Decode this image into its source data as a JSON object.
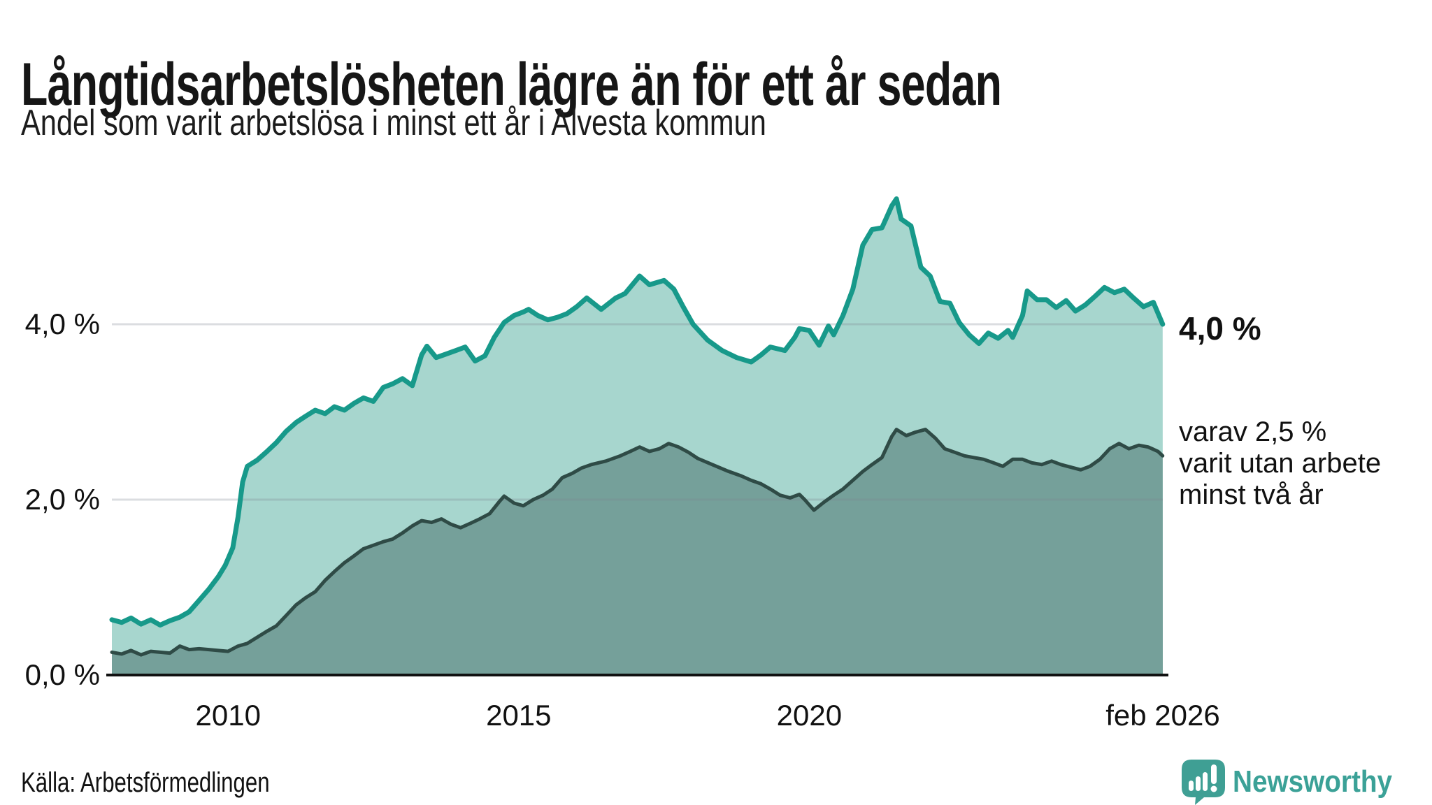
{
  "header": {
    "title": "Långtidsarbetslösheten lägre än för ett år sedan",
    "subtitle": "Andel som varit arbetslösa i minst ett år i Alvesta kommun"
  },
  "annotations": {
    "primary_end_label": "4,0 %",
    "secondary_end_label_lines": [
      "varav 2,5 %",
      "varit utan arbete",
      "minst två år"
    ]
  },
  "footer": {
    "source": "Källa: Arbetsförmedlingen",
    "brand_name": "Newsworthy",
    "brand_icon": "speech-bubble-bar-chart-icon"
  },
  "colors": {
    "line_primary": "#17998a",
    "fill_primary": "#a7d6ce",
    "line_secondary": "#2f4b46",
    "fill_secondary": "#75a09a",
    "axis": "#111111",
    "gridline": "rgba(127,132,142,0.28)",
    "brand_teal": "#3ba197",
    "text": "#111111"
  },
  "chart_data": {
    "type": "area",
    "title": "Långtidsarbetslösheten lägre än för ett år sedan",
    "subtitle": "Andel som varit arbetslösa i minst ett år i Alvesta kommun",
    "unit": "%",
    "grid": "horizontal",
    "legend_position": "right-edge-annotations",
    "x_axis": {
      "range": [
        2008.0,
        2026.083
      ],
      "ticks": [
        {
          "x": 2010,
          "label": "2010"
        },
        {
          "x": 2015,
          "label": "2015"
        },
        {
          "x": 2020,
          "label": "2020"
        },
        {
          "x": 2026.083,
          "label": "feb 2026"
        }
      ]
    },
    "y_axis": {
      "range": [
        0,
        5.6
      ],
      "ticks": [
        {
          "v": 0,
          "label": "0,0 %"
        },
        {
          "v": 2,
          "label": "2,0 %"
        },
        {
          "v": 4,
          "label": "4,0 %"
        }
      ]
    },
    "series": [
      {
        "name": "Andel som varit arbetslösa i minst ett år",
        "end_value": 4.0,
        "end_label": "4,0 %",
        "points": [
          [
            2008.0,
            0.63
          ],
          [
            2008.17,
            0.6
          ],
          [
            2008.33,
            0.65
          ],
          [
            2008.5,
            0.58
          ],
          [
            2008.67,
            0.63
          ],
          [
            2008.83,
            0.57
          ],
          [
            2009.0,
            0.62
          ],
          [
            2009.17,
            0.66
          ],
          [
            2009.33,
            0.72
          ],
          [
            2009.5,
            0.85
          ],
          [
            2009.67,
            0.98
          ],
          [
            2009.83,
            1.12
          ],
          [
            2009.95,
            1.25
          ],
          [
            2010.08,
            1.45
          ],
          [
            2010.17,
            1.8
          ],
          [
            2010.25,
            2.2
          ],
          [
            2010.33,
            2.38
          ],
          [
            2010.5,
            2.45
          ],
          [
            2010.67,
            2.55
          ],
          [
            2010.83,
            2.65
          ],
          [
            2011.0,
            2.78
          ],
          [
            2011.17,
            2.88
          ],
          [
            2011.33,
            2.95
          ],
          [
            2011.5,
            3.02
          ],
          [
            2011.67,
            2.98
          ],
          [
            2011.83,
            3.06
          ],
          [
            2012.0,
            3.02
          ],
          [
            2012.17,
            3.1
          ],
          [
            2012.33,
            3.16
          ],
          [
            2012.5,
            3.12
          ],
          [
            2012.67,
            3.28
          ],
          [
            2012.83,
            3.32
          ],
          [
            2013.0,
            3.38
          ],
          [
            2013.17,
            3.3
          ],
          [
            2013.33,
            3.65
          ],
          [
            2013.42,
            3.75
          ],
          [
            2013.58,
            3.62
          ],
          [
            2013.75,
            3.66
          ],
          [
            2013.92,
            3.7
          ],
          [
            2014.08,
            3.74
          ],
          [
            2014.25,
            3.58
          ],
          [
            2014.42,
            3.64
          ],
          [
            2014.58,
            3.85
          ],
          [
            2014.75,
            4.02
          ],
          [
            2014.92,
            4.1
          ],
          [
            2015.08,
            4.14
          ],
          [
            2015.17,
            4.17
          ],
          [
            2015.33,
            4.1
          ],
          [
            2015.5,
            4.05
          ],
          [
            2015.67,
            4.08
          ],
          [
            2015.83,
            4.12
          ],
          [
            2016.0,
            4.2
          ],
          [
            2016.17,
            4.3
          ],
          [
            2016.42,
            4.17
          ],
          [
            2016.67,
            4.3
          ],
          [
            2016.83,
            4.35
          ],
          [
            2017.08,
            4.55
          ],
          [
            2017.25,
            4.45
          ],
          [
            2017.5,
            4.5
          ],
          [
            2017.67,
            4.4
          ],
          [
            2017.83,
            4.2
          ],
          [
            2018.0,
            4.0
          ],
          [
            2018.25,
            3.82
          ],
          [
            2018.5,
            3.7
          ],
          [
            2018.75,
            3.62
          ],
          [
            2019.0,
            3.57
          ],
          [
            2019.17,
            3.65
          ],
          [
            2019.33,
            3.74
          ],
          [
            2019.58,
            3.7
          ],
          [
            2019.75,
            3.85
          ],
          [
            2019.83,
            3.95
          ],
          [
            2020.0,
            3.93
          ],
          [
            2020.17,
            3.76
          ],
          [
            2020.33,
            3.98
          ],
          [
            2020.42,
            3.88
          ],
          [
            2020.58,
            4.1
          ],
          [
            2020.75,
            4.4
          ],
          [
            2020.92,
            4.9
          ],
          [
            2021.08,
            5.08
          ],
          [
            2021.25,
            5.1
          ],
          [
            2021.42,
            5.35
          ],
          [
            2021.5,
            5.43
          ],
          [
            2021.58,
            5.2
          ],
          [
            2021.75,
            5.12
          ],
          [
            2021.92,
            4.65
          ],
          [
            2022.08,
            4.55
          ],
          [
            2022.25,
            4.26
          ],
          [
            2022.42,
            4.24
          ],
          [
            2022.58,
            4.02
          ],
          [
            2022.75,
            3.88
          ],
          [
            2022.92,
            3.78
          ],
          [
            2023.08,
            3.9
          ],
          [
            2023.25,
            3.84
          ],
          [
            2023.42,
            3.93
          ],
          [
            2023.5,
            3.85
          ],
          [
            2023.67,
            4.1
          ],
          [
            2023.75,
            4.38
          ],
          [
            2023.92,
            4.28
          ],
          [
            2024.08,
            4.28
          ],
          [
            2024.25,
            4.19
          ],
          [
            2024.42,
            4.27
          ],
          [
            2024.58,
            4.15
          ],
          [
            2024.75,
            4.22
          ],
          [
            2024.92,
            4.32
          ],
          [
            2025.08,
            4.42
          ],
          [
            2025.25,
            4.36
          ],
          [
            2025.42,
            4.4
          ],
          [
            2025.58,
            4.3
          ],
          [
            2025.75,
            4.2
          ],
          [
            2025.92,
            4.25
          ],
          [
            2026.08,
            4.0
          ]
        ]
      },
      {
        "name": "varav utan arbete minst två år",
        "end_value": 2.5,
        "end_label": "varav 2,5 % varit utan arbete minst två år",
        "points": [
          [
            2008.0,
            0.26
          ],
          [
            2008.17,
            0.24
          ],
          [
            2008.33,
            0.28
          ],
          [
            2008.5,
            0.23
          ],
          [
            2008.67,
            0.27
          ],
          [
            2008.83,
            0.26
          ],
          [
            2009.0,
            0.25
          ],
          [
            2009.17,
            0.33
          ],
          [
            2009.33,
            0.29
          ],
          [
            2009.5,
            0.3
          ],
          [
            2009.67,
            0.29
          ],
          [
            2009.83,
            0.28
          ],
          [
            2010.0,
            0.27
          ],
          [
            2010.17,
            0.33
          ],
          [
            2010.33,
            0.36
          ],
          [
            2010.5,
            0.43
          ],
          [
            2010.67,
            0.5
          ],
          [
            2010.83,
            0.56
          ],
          [
            2011.0,
            0.68
          ],
          [
            2011.17,
            0.8
          ],
          [
            2011.33,
            0.88
          ],
          [
            2011.5,
            0.95
          ],
          [
            2011.67,
            1.08
          ],
          [
            2011.83,
            1.18
          ],
          [
            2012.0,
            1.28
          ],
          [
            2012.17,
            1.36
          ],
          [
            2012.33,
            1.44
          ],
          [
            2012.5,
            1.48
          ],
          [
            2012.67,
            1.52
          ],
          [
            2012.83,
            1.55
          ],
          [
            2013.0,
            1.62
          ],
          [
            2013.17,
            1.7
          ],
          [
            2013.33,
            1.76
          ],
          [
            2013.5,
            1.74
          ],
          [
            2013.67,
            1.78
          ],
          [
            2013.83,
            1.72
          ],
          [
            2014.0,
            1.68
          ],
          [
            2014.17,
            1.73
          ],
          [
            2014.33,
            1.78
          ],
          [
            2014.5,
            1.84
          ],
          [
            2014.67,
            1.98
          ],
          [
            2014.75,
            2.04
          ],
          [
            2014.92,
            1.96
          ],
          [
            2015.08,
            1.93
          ],
          [
            2015.25,
            2.0
          ],
          [
            2015.42,
            2.05
          ],
          [
            2015.58,
            2.12
          ],
          [
            2015.75,
            2.25
          ],
          [
            2015.92,
            2.3
          ],
          [
            2016.08,
            2.36
          ],
          [
            2016.25,
            2.4
          ],
          [
            2016.5,
            2.44
          ],
          [
            2016.75,
            2.5
          ],
          [
            2016.92,
            2.55
          ],
          [
            2017.08,
            2.6
          ],
          [
            2017.25,
            2.55
          ],
          [
            2017.42,
            2.58
          ],
          [
            2017.58,
            2.64
          ],
          [
            2017.75,
            2.6
          ],
          [
            2017.92,
            2.54
          ],
          [
            2018.08,
            2.47
          ],
          [
            2018.33,
            2.4
          ],
          [
            2018.58,
            2.33
          ],
          [
            2018.83,
            2.27
          ],
          [
            2019.0,
            2.22
          ],
          [
            2019.17,
            2.18
          ],
          [
            2019.33,
            2.12
          ],
          [
            2019.5,
            2.05
          ],
          [
            2019.67,
            2.02
          ],
          [
            2019.83,
            2.06
          ],
          [
            2019.92,
            2.0
          ],
          [
            2020.08,
            1.88
          ],
          [
            2020.25,
            1.97
          ],
          [
            2020.42,
            2.05
          ],
          [
            2020.58,
            2.12
          ],
          [
            2020.75,
            2.22
          ],
          [
            2020.92,
            2.32
          ],
          [
            2021.08,
            2.4
          ],
          [
            2021.25,
            2.48
          ],
          [
            2021.42,
            2.72
          ],
          [
            2021.5,
            2.8
          ],
          [
            2021.67,
            2.73
          ],
          [
            2021.83,
            2.77
          ],
          [
            2022.0,
            2.8
          ],
          [
            2022.17,
            2.7
          ],
          [
            2022.33,
            2.58
          ],
          [
            2022.5,
            2.54
          ],
          [
            2022.67,
            2.5
          ],
          [
            2022.83,
            2.48
          ],
          [
            2023.0,
            2.46
          ],
          [
            2023.17,
            2.42
          ],
          [
            2023.33,
            2.38
          ],
          [
            2023.5,
            2.46
          ],
          [
            2023.67,
            2.46
          ],
          [
            2023.83,
            2.42
          ],
          [
            2024.0,
            2.4
          ],
          [
            2024.17,
            2.44
          ],
          [
            2024.33,
            2.4
          ],
          [
            2024.5,
            2.37
          ],
          [
            2024.67,
            2.34
          ],
          [
            2024.83,
            2.38
          ],
          [
            2025.0,
            2.46
          ],
          [
            2025.17,
            2.58
          ],
          [
            2025.33,
            2.64
          ],
          [
            2025.5,
            2.58
          ],
          [
            2025.67,
            2.62
          ],
          [
            2025.83,
            2.6
          ],
          [
            2026.0,
            2.55
          ],
          [
            2026.08,
            2.5
          ]
        ]
      }
    ]
  }
}
